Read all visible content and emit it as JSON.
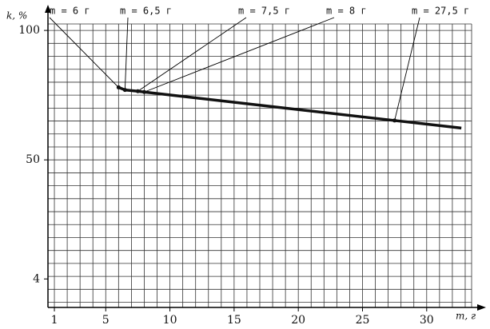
{
  "chart_data": {
    "type": "line",
    "y_label": "k, %",
    "x_label": "m, г",
    "x": [
      6,
      6.5,
      7.5,
      8,
      27.5,
      32.7
    ],
    "series": [
      {
        "color": "#111111",
        "values": [
          78,
          77,
          76.5,
          76.2,
          65.2,
          62.3
        ]
      }
    ],
    "annotations": [
      "m = 6  г",
      "m = 6,5  г",
      "m = 7,5  г",
      "m = 8  г",
      "m = 27,5  г"
    ],
    "xlim": [
      0.5,
      33.5
    ],
    "ylim": [
      -7,
      102.5
    ],
    "xticks": [
      1,
      5,
      10,
      15,
      20,
      25,
      30
    ],
    "yticks": [
      4,
      50,
      100
    ],
    "grid": true
  }
}
